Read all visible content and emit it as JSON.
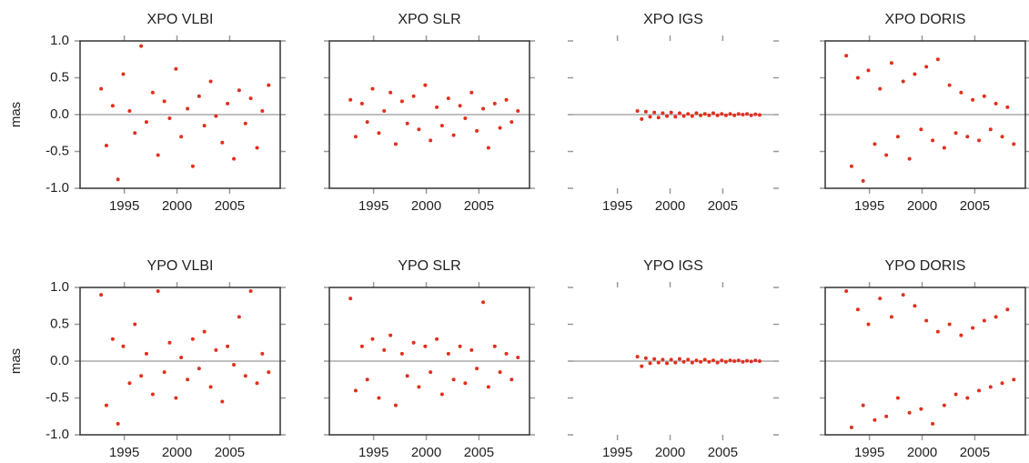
{
  "chart_data": [
    {
      "type": "scatter",
      "title": "XPO VLBI",
      "ylabel": "mas",
      "color": "#e0301e",
      "frame": true,
      "zero_line": true,
      "xlim": [
        1990.8,
        2009.8
      ],
      "ylim": [
        -1,
        1
      ],
      "xticks": [
        1995,
        2000,
        2005
      ],
      "yticks": [
        {
          "value": -1,
          "label": "-1.0"
        },
        {
          "value": -0.5,
          "label": "-0.5"
        },
        {
          "value": 0,
          "label": "0.0"
        },
        {
          "value": 0.5,
          "label": "0.5"
        },
        {
          "value": 1,
          "label": "1.0"
        }
      ],
      "x": [
        1992.8,
        1993.3,
        1993.9,
        1994.4,
        1994.9,
        1995.5,
        1996.0,
        1996.6,
        1997.1,
        1997.7,
        1998.2,
        1998.8,
        1999.3,
        1999.9,
        2000.4,
        2001.0,
        2001.5,
        2002.1,
        2002.6,
        2003.2,
        2003.7,
        2004.3,
        2004.8,
        2005.4,
        2005.9,
        2006.5,
        2007.0,
        2007.6,
        2008.1,
        2008.7
      ],
      "y": [
        0.35,
        -0.42,
        0.12,
        -0.88,
        0.55,
        0.05,
        -0.25,
        0.93,
        -0.1,
        0.3,
        -0.55,
        0.18,
        -0.05,
        0.62,
        -0.3,
        0.08,
        -0.7,
        0.25,
        -0.15,
        0.45,
        -0.02,
        -0.38,
        0.15,
        -0.6,
        0.33,
        -0.12,
        0.22,
        -0.45,
        0.05,
        0.4
      ]
    },
    {
      "type": "scatter",
      "title": "XPO SLR",
      "color": "#e0301e",
      "frame": true,
      "zero_line": true,
      "xlim": [
        1990.8,
        2009.8
      ],
      "ylim": [
        -1,
        1
      ],
      "xticks": [
        1995,
        2000,
        2005
      ],
      "yticks": [
        -1,
        -0.5,
        0,
        0.5,
        1
      ],
      "x": [
        1992.8,
        1993.3,
        1993.9,
        1994.4,
        1994.9,
        1995.5,
        1996.0,
        1996.6,
        1997.1,
        1997.7,
        1998.2,
        1998.8,
        1999.3,
        1999.9,
        2000.4,
        2001.0,
        2001.5,
        2002.1,
        2002.6,
        2003.2,
        2003.7,
        2004.3,
        2004.8,
        2005.4,
        2005.9,
        2006.5,
        2007.0,
        2007.6,
        2008.1,
        2008.7
      ],
      "y": [
        0.2,
        -0.3,
        0.15,
        -0.1,
        0.35,
        -0.25,
        0.05,
        0.3,
        -0.4,
        0.18,
        -0.12,
        0.25,
        -0.2,
        0.4,
        -0.35,
        0.1,
        -0.15,
        0.22,
        -0.28,
        0.12,
        -0.05,
        0.3,
        -0.22,
        0.08,
        -0.45,
        0.15,
        -0.18,
        0.2,
        -0.1,
        0.05
      ]
    },
    {
      "type": "scatter",
      "title": "XPO IGS",
      "color": "#e0301e",
      "frame": false,
      "zero_line": true,
      "xlim": [
        1990.8,
        2009.8
      ],
      "ylim": [
        -1,
        1
      ],
      "xticks": [
        1995,
        2000,
        2005
      ],
      "yticks": [
        -1,
        -0.5,
        0,
        0.5,
        1
      ],
      "x": [
        1996.9,
        1997.3,
        1997.7,
        1998.1,
        1998.5,
        1998.9,
        1999.3,
        1999.7,
        2000.1,
        2000.5,
        2000.9,
        2001.3,
        2001.7,
        2002.1,
        2002.5,
        2002.9,
        2003.3,
        2003.7,
        2004.1,
        2004.5,
        2004.9,
        2005.3,
        2005.7,
        2006.1,
        2006.5,
        2006.9,
        2007.3,
        2007.7,
        2008.1,
        2008.5
      ],
      "y": [
        0.05,
        -0.06,
        0.04,
        -0.03,
        0.03,
        -0.04,
        0.02,
        -0.02,
        0.03,
        -0.03,
        0.02,
        -0.02,
        0.01,
        -0.02,
        0.02,
        -0.01,
        0.01,
        -0.01,
        0.02,
        -0.01,
        0.01,
        -0.01,
        0.01,
        -0.01,
        0.01,
        0,
        0.01,
        -0.01,
        0.005,
        -0.005
      ]
    },
    {
      "type": "scatter",
      "title": "XPO DORIS",
      "color": "#e0301e",
      "frame": true,
      "zero_line": true,
      "xlim": [
        1990.8,
        2009.8
      ],
      "ylim": [
        -1,
        1
      ],
      "xticks": [
        1995,
        2000,
        2005
      ],
      "yticks": [
        -1,
        -0.5,
        0,
        0.5,
        1
      ],
      "x": [
        1992.8,
        1993.3,
        1993.9,
        1994.4,
        1994.9,
        1995.5,
        1996.0,
        1996.6,
        1997.1,
        1997.7,
        1998.2,
        1998.8,
        1999.3,
        1999.9,
        2000.4,
        2001.0,
        2001.5,
        2002.1,
        2002.6,
        2003.2,
        2003.7,
        2004.3,
        2004.8,
        2005.4,
        2005.9,
        2006.5,
        2007.0,
        2007.6,
        2008.1,
        2008.7
      ],
      "y": [
        0.8,
        -0.7,
        0.5,
        -0.9,
        0.6,
        -0.4,
        0.35,
        -0.55,
        0.7,
        -0.3,
        0.45,
        -0.6,
        0.55,
        -0.2,
        0.65,
        -0.35,
        0.75,
        -0.45,
        0.4,
        -0.25,
        0.3,
        -0.3,
        0.2,
        -0.35,
        0.25,
        -0.2,
        0.15,
        -0.3,
        0.1,
        -0.4
      ]
    },
    {
      "type": "scatter",
      "title": "YPO VLBI",
      "ylabel": "mas",
      "color": "#e0301e",
      "frame": true,
      "zero_line": true,
      "xlim": [
        1990.8,
        2009.8
      ],
      "ylim": [
        -1,
        1
      ],
      "xticks": [
        1995,
        2000,
        2005
      ],
      "yticks": [
        {
          "value": -1,
          "label": "-1.0"
        },
        {
          "value": -0.5,
          "label": "-0.5"
        },
        {
          "value": 0,
          "label": "0.0"
        },
        {
          "value": 0.5,
          "label": "0.5"
        },
        {
          "value": 1,
          "label": "1.0"
        }
      ],
      "x": [
        1992.8,
        1993.3,
        1993.9,
        1994.4,
        1994.9,
        1995.5,
        1996.0,
        1996.6,
        1997.1,
        1997.7,
        1998.2,
        1998.8,
        1999.3,
        1999.9,
        2000.4,
        2001.0,
        2001.5,
        2002.1,
        2002.6,
        2003.2,
        2003.7,
        2004.3,
        2004.8,
        2005.4,
        2005.9,
        2006.5,
        2007.0,
        2007.6,
        2008.1,
        2008.7
      ],
      "y": [
        0.9,
        -0.6,
        0.3,
        -0.85,
        0.2,
        -0.3,
        0.5,
        -0.2,
        0.1,
        -0.45,
        0.95,
        -0.15,
        0.25,
        -0.5,
        0.05,
        -0.25,
        0.3,
        -0.1,
        0.4,
        -0.35,
        0.15,
        -0.55,
        0.2,
        -0.05,
        0.6,
        -0.2,
        0.95,
        -0.3,
        0.1,
        -0.15
      ]
    },
    {
      "type": "scatter",
      "title": "YPO SLR",
      "color": "#e0301e",
      "frame": true,
      "zero_line": true,
      "xlim": [
        1990.8,
        2009.8
      ],
      "ylim": [
        -1,
        1
      ],
      "xticks": [
        1995,
        2000,
        2005
      ],
      "yticks": [
        -1,
        -0.5,
        0,
        0.5,
        1
      ],
      "x": [
        1992.8,
        1993.3,
        1993.9,
        1994.4,
        1994.9,
        1995.5,
        1996.0,
        1996.6,
        1997.1,
        1997.7,
        1998.2,
        1998.8,
        1999.3,
        1999.9,
        2000.4,
        2001.0,
        2001.5,
        2002.1,
        2002.6,
        2003.2,
        2003.7,
        2004.3,
        2004.8,
        2005.4,
        2005.9,
        2006.5,
        2007.0,
        2007.6,
        2008.1,
        2008.7
      ],
      "y": [
        0.85,
        -0.4,
        0.2,
        -0.25,
        0.3,
        -0.5,
        0.15,
        0.35,
        -0.6,
        0.1,
        -0.2,
        0.25,
        -0.35,
        0.2,
        -0.15,
        0.3,
        -0.45,
        0.1,
        -0.25,
        0.2,
        -0.3,
        0.15,
        -0.1,
        0.8,
        -0.35,
        0.2,
        -0.15,
        0.1,
        -0.25,
        0.05
      ]
    },
    {
      "type": "scatter",
      "title": "YPO IGS",
      "color": "#e0301e",
      "frame": false,
      "zero_line": true,
      "xlim": [
        1990.8,
        2009.8
      ],
      "ylim": [
        -1,
        1
      ],
      "xticks": [
        1995,
        2000,
        2005
      ],
      "yticks": [
        -1,
        -0.5,
        0,
        0.5,
        1
      ],
      "x": [
        1996.9,
        1997.3,
        1997.7,
        1998.1,
        1998.5,
        1998.9,
        1999.3,
        1999.7,
        2000.1,
        2000.5,
        2000.9,
        2001.3,
        2001.7,
        2002.1,
        2002.5,
        2002.9,
        2003.3,
        2003.7,
        2004.1,
        2004.5,
        2004.9,
        2005.3,
        2005.7,
        2006.1,
        2006.5,
        2006.9,
        2007.3,
        2007.7,
        2008.1,
        2008.5
      ],
      "y": [
        0.06,
        -0.07,
        0.04,
        -0.03,
        0.03,
        -0.02,
        0.02,
        -0.03,
        0.02,
        -0.02,
        0.03,
        -0.01,
        0.02,
        -0.02,
        0.01,
        -0.01,
        0.02,
        -0.01,
        0.01,
        -0.02,
        0.01,
        -0.01,
        0.01,
        0,
        0.01,
        -0.01,
        0.005,
        -0.005,
        0.01,
        0
      ]
    },
    {
      "type": "scatter",
      "title": "YPO DORIS",
      "color": "#e0301e",
      "frame": true,
      "zero_line": true,
      "xlim": [
        1990.8,
        2009.8
      ],
      "ylim": [
        -1,
        1
      ],
      "xticks": [
        1995,
        2000,
        2005
      ],
      "yticks": [
        -1,
        -0.5,
        0,
        0.5,
        1
      ],
      "x": [
        1992.8,
        1993.3,
        1993.9,
        1994.4,
        1994.9,
        1995.5,
        1996.0,
        1996.6,
        1997.1,
        1997.7,
        1998.2,
        1998.8,
        1999.3,
        1999.9,
        2000.4,
        2001.0,
        2001.5,
        2002.1,
        2002.6,
        2003.2,
        2003.7,
        2004.3,
        2004.8,
        2005.4,
        2005.9,
        2006.5,
        2007.0,
        2007.6,
        2008.1,
        2008.7
      ],
      "y": [
        0.95,
        -0.9,
        0.7,
        -0.6,
        0.5,
        -0.8,
        0.85,
        -0.75,
        0.6,
        -0.5,
        0.9,
        -0.7,
        0.75,
        -0.65,
        0.55,
        -0.85,
        0.4,
        -0.6,
        0.5,
        -0.45,
        0.35,
        -0.5,
        0.45,
        -0.4,
        0.55,
        -0.35,
        0.6,
        -0.3,
        0.7,
        -0.25
      ]
    }
  ]
}
